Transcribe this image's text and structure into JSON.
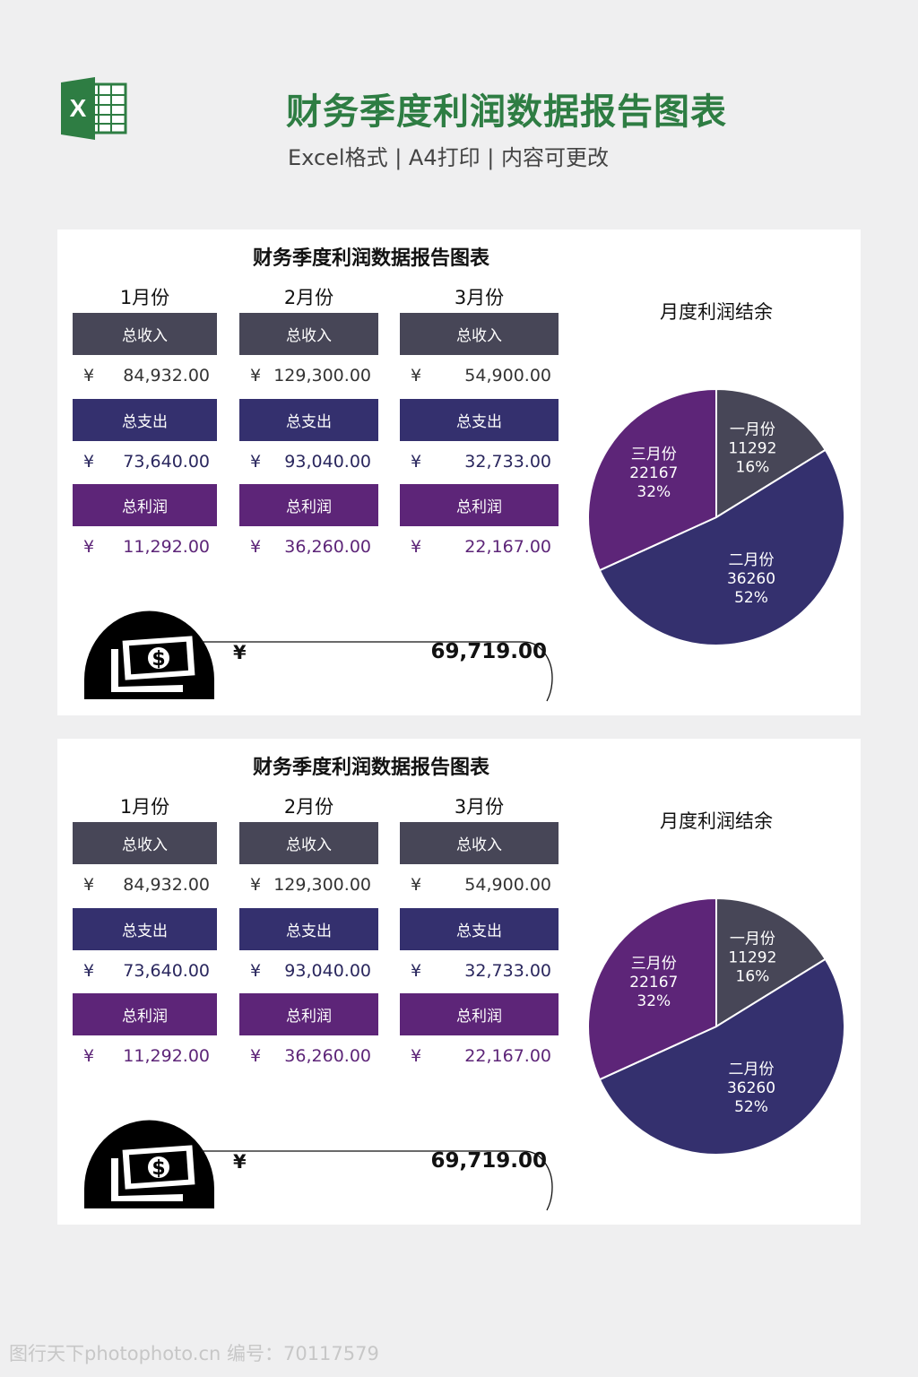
{
  "header": {
    "title": "财务季度利润数据报告图表",
    "subtitle": "Excel格式 | A4打印 | 内容可更改",
    "logo_letter": "X"
  },
  "colors": {
    "income": "#474657",
    "expense": "#34306e",
    "profit": "#5d2578",
    "header_green": "#2e7d43"
  },
  "cards": [
    {
      "title": "财务季度利润数据报告图表",
      "chart_title": "月度利润结余",
      "currency": "¥",
      "total": "69,719.00",
      "months": [
        {
          "name": "1月份",
          "income_label": "总收入",
          "income": "84,932.00",
          "expense_label": "总支出",
          "expense": "73,640.00",
          "profit_label": "总利润",
          "profit": "11,292.00"
        },
        {
          "name": "2月份",
          "income_label": "总收入",
          "income": "129,300.00",
          "expense_label": "总支出",
          "expense": "93,040.00",
          "profit_label": "总利润",
          "profit": "36,260.00"
        },
        {
          "name": "3月份",
          "income_label": "总收入",
          "income": "54,900.00",
          "expense_label": "总支出",
          "expense": "32,733.00",
          "profit_label": "总利润",
          "profit": "22,167.00"
        }
      ]
    },
    {
      "title": "财务季度利润数据报告图表",
      "chart_title": "月度利润结余",
      "currency": "¥",
      "total": "69,719.00",
      "months": [
        {
          "name": "1月份",
          "income_label": "总收入",
          "income": "84,932.00",
          "expense_label": "总支出",
          "expense": "73,640.00",
          "profit_label": "总利润",
          "profit": "11,292.00"
        },
        {
          "name": "2月份",
          "income_label": "总收入",
          "income": "129,300.00",
          "expense_label": "总支出",
          "expense": "93,040.00",
          "profit_label": "总利润",
          "profit": "36,260.00"
        },
        {
          "name": "3月份",
          "income_label": "总收入",
          "income": "54,900.00",
          "expense_label": "总支出",
          "expense": "32,733.00",
          "profit_label": "总利润",
          "profit": "22,167.00"
        }
      ]
    }
  ],
  "chart_data": [
    {
      "type": "pie",
      "title": "月度利润结余",
      "categories": [
        "一月份",
        "二月份",
        "三月份"
      ],
      "values": [
        11292,
        36260,
        22167
      ],
      "labels": [
        "16%",
        "52%",
        "32%"
      ],
      "colors": [
        "#474657",
        "#34306e",
        "#5d2578"
      ]
    },
    {
      "type": "pie",
      "title": "月度利润结余",
      "categories": [
        "一月份",
        "二月份",
        "三月份"
      ],
      "values": [
        11292,
        36260,
        22167
      ],
      "labels": [
        "16%",
        "52%",
        "32%"
      ],
      "colors": [
        "#474657",
        "#34306e",
        "#5d2578"
      ]
    }
  ],
  "watermark": "图行天下photophoto.cn 编号：70117579"
}
